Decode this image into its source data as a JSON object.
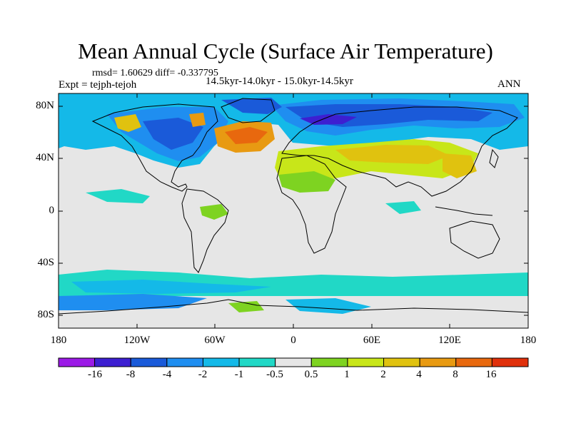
{
  "figure": {
    "title": "Mean Annual Cycle (Surface Air Temperature)",
    "stats": "rmsd= 1.60629 diff= -0.337795",
    "experiment": "Expt = tejph-tejoh",
    "period": "14.5kyr-14.0kyr - 15.0kyr-14.5kyr",
    "season": "ANN"
  },
  "axes": {
    "lat_labels": [
      "80N",
      "40N",
      "0",
      "40S",
      "80S"
    ],
    "lon_labels": [
      "180",
      "120W",
      "60W",
      "0",
      "60E",
      "120E",
      "180"
    ]
  },
  "colorbar": {
    "labels": [
      "-16",
      "-8",
      "-4",
      "-2",
      "-1",
      "-0.5",
      "0.5",
      "1",
      "2",
      "4",
      "8",
      "16"
    ],
    "colors": [
      "#9b1ae6",
      "#3d1fd1",
      "#1a5ad9",
      "#1f8ef0",
      "#14b9e8",
      "#21d8c6",
      "#e6e6e6",
      "#7ed321",
      "#c8e619",
      "#e0c20f",
      "#e89a12",
      "#e8680e",
      "#e0300b"
    ]
  },
  "colors": {
    "background": "#e6e6e6",
    "coastline": "#000000"
  }
}
